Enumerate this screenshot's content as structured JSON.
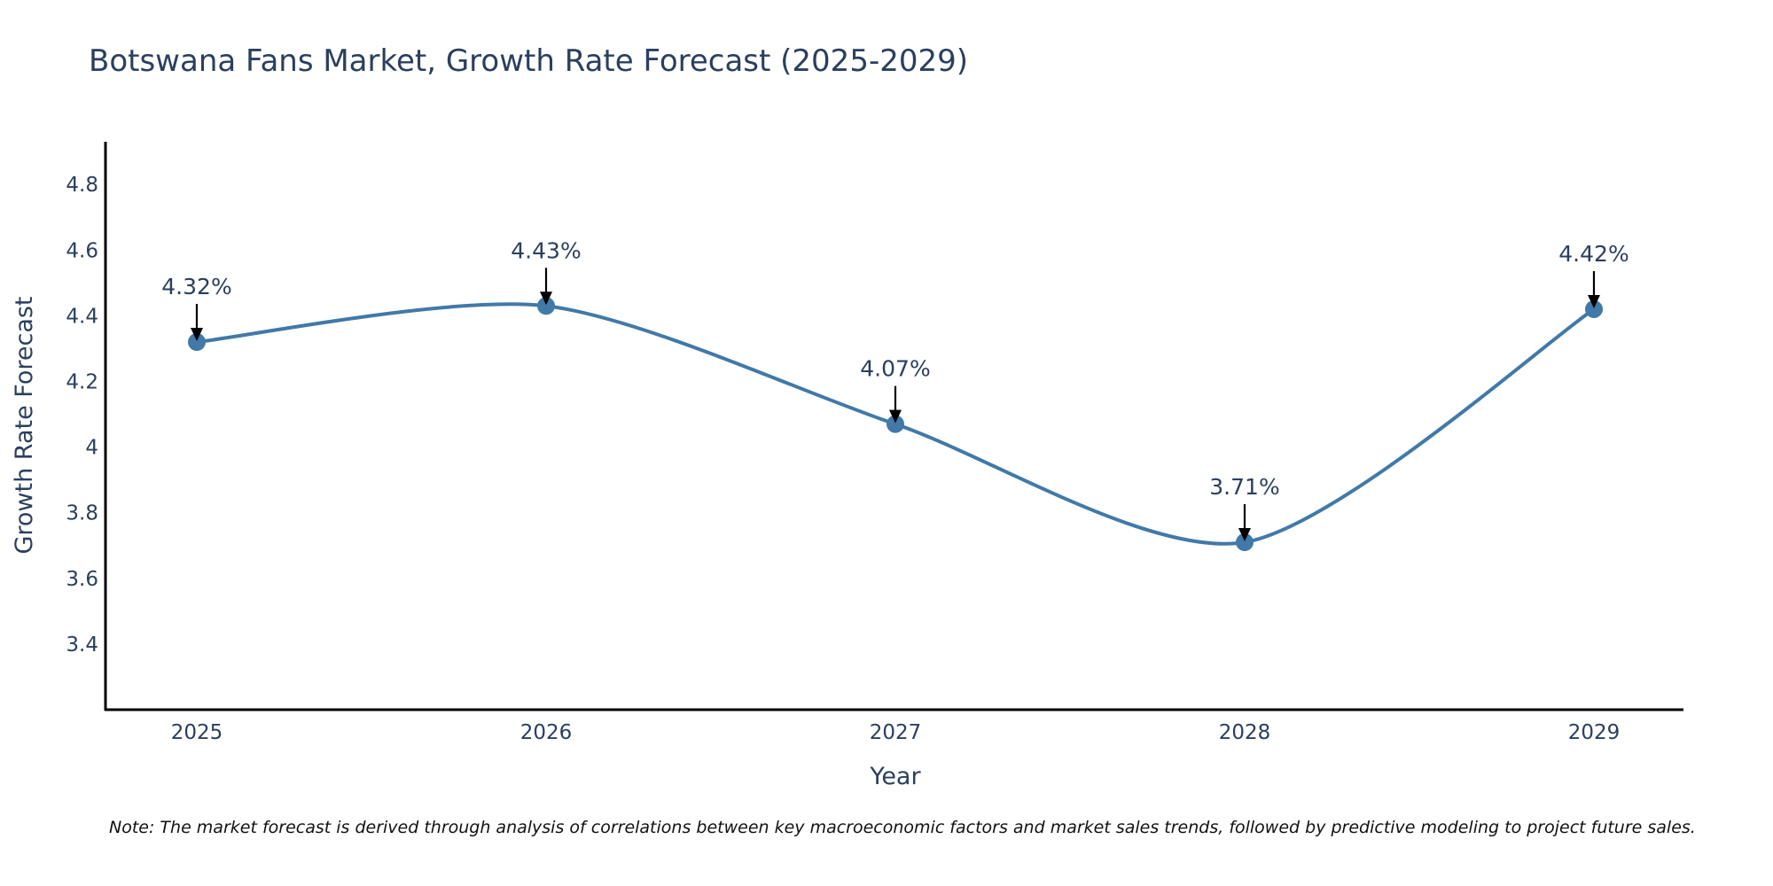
{
  "chart_data": {
    "type": "line",
    "title": "Botswana Fans Market, Growth Rate Forecast (2025-2029)",
    "xlabel": "Year",
    "ylabel": "Growth Rate Forecast",
    "categories": [
      "2025",
      "2026",
      "2027",
      "2028",
      "2029"
    ],
    "values": [
      4.32,
      4.43,
      4.07,
      3.71,
      4.42
    ],
    "data_labels": [
      "4.32%",
      "4.43%",
      "4.07%",
      "3.71%",
      "4.42%"
    ],
    "y_ticks": [
      3.4,
      3.6,
      3.8,
      4,
      4.2,
      4.4,
      4.6,
      4.8
    ],
    "y_tick_labels": [
      "3.4",
      "3.6",
      "3.8",
      "4",
      "4.2",
      "4.4",
      "4.6",
      "4.8"
    ],
    "ylim": [
      3.2,
      4.93
    ],
    "line_shape": "spline",
    "grid": false,
    "note": "Note: The market forecast is derived through analysis of correlations between key macroeconomic factors and market sales trends, followed by predictive modeling to project future sales.",
    "colors": {
      "line": "#4179a8",
      "marker": "#4179a8",
      "arrow": "#000000",
      "axis": "#000000",
      "text": "#2a3f5f"
    }
  }
}
